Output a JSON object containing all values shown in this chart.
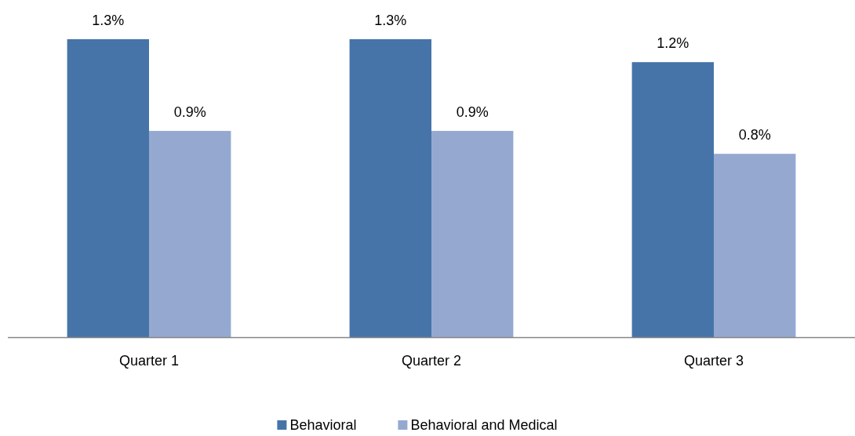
{
  "chart_data": {
    "type": "bar",
    "categories": [
      "Quarter 1",
      "Quarter 2",
      "Quarter 3"
    ],
    "series": [
      {
        "name": "Behavioral",
        "color": "#4674a9",
        "values": [
          1.3,
          1.3,
          1.2
        ],
        "value_labels": [
          "1.3%",
          "1.3%",
          "1.2%"
        ]
      },
      {
        "name": "Behavioral and Medical",
        "color": "#95a9d0",
        "values": [
          0.9,
          0.9,
          0.8
        ],
        "value_labels": [
          "0.9%",
          "0.9%",
          "0.8%"
        ]
      }
    ],
    "legend": "bottom",
    "grid": false
  }
}
